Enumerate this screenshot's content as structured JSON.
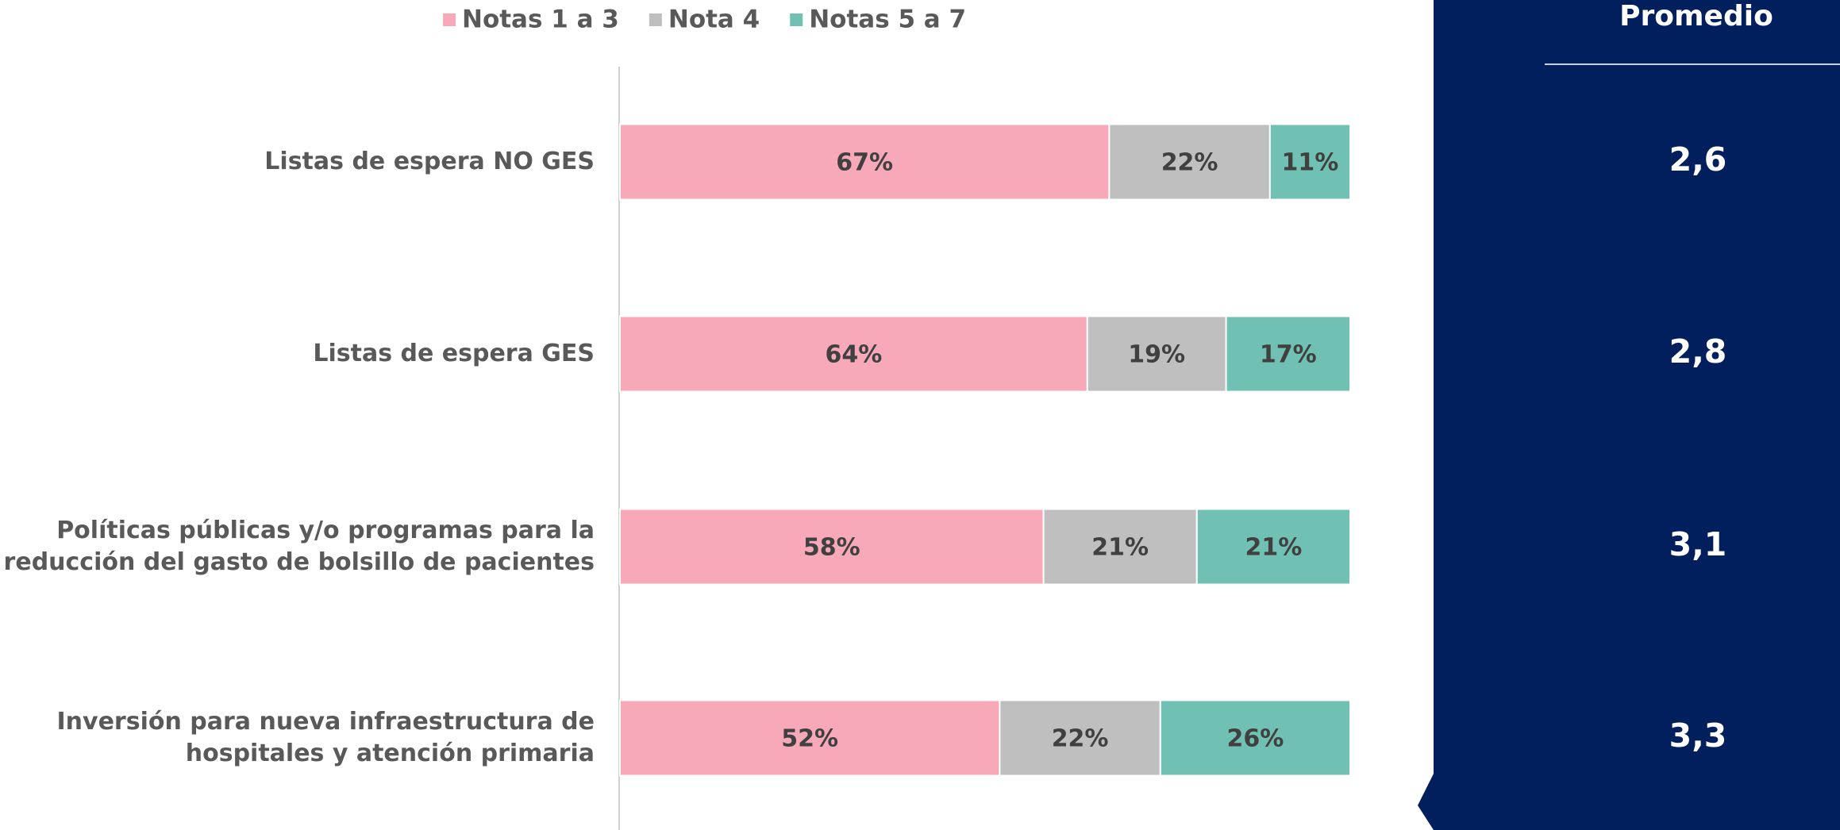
{
  "chart_data": {
    "type": "bar",
    "orientation": "horizontal",
    "stacked": true,
    "categories": [
      "Listas de espera NO GES",
      "Listas de espera GES",
      "Políticas públicas y/o programas para la\nreducción del gasto de bolsillo de pacientes",
      "Inversión para nueva infraestructura de\nhospitales y atención primaria"
    ],
    "series": [
      {
        "name": "Notas 1 a 3",
        "color": "#f7a8b9",
        "values": [
          67,
          64,
          58,
          52
        ],
        "value_labels": [
          "67%",
          "64%",
          "58%",
          "52%"
        ]
      },
      {
        "name": "Nota 4",
        "color": "#bfbfbf",
        "values": [
          22,
          19,
          21,
          22
        ],
        "value_labels": [
          "22%",
          "19%",
          "21%",
          "22%"
        ]
      },
      {
        "name": "Notas 5 a 7",
        "color": "#70c1b3",
        "values": [
          11,
          17,
          21,
          26
        ],
        "value_labels": [
          "11%",
          "17%",
          "21%",
          "26%"
        ]
      }
    ],
    "xlim": [
      0,
      100
    ],
    "legend": "top",
    "averages": {
      "title": "Promedio",
      "color": "#001f5c",
      "values": [
        2.6,
        2.8,
        3.1,
        3.3
      ],
      "value_labels": [
        "2,6",
        "2,8",
        "3,1",
        "3,3"
      ]
    }
  }
}
